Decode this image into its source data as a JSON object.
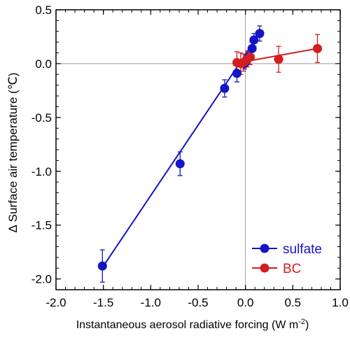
{
  "chart_data": {
    "type": "scatter",
    "title": "",
    "xlabel_main": "Instantaneous aerosol radiative forcing (W m",
    "xlabel_sup": "-2",
    "xlabel_close": ")",
    "ylabel": "Δ Surface air temperature (℃)",
    "xlim": [
      -2.0,
      1.0
    ],
    "ylim": [
      -2.1,
      0.5
    ],
    "x_ticks": [
      -2.0,
      -1.5,
      -1.0,
      -0.5,
      0.0,
      0.5,
      1.0
    ],
    "x_tick_labels": [
      "-2.0",
      "-1.5",
      "-1.0",
      "-0.5",
      "0.0",
      "0.5",
      "1.0"
    ],
    "y_ticks": [
      -2.0,
      -1.5,
      -1.0,
      -0.5,
      0.0,
      0.5
    ],
    "y_tick_labels": [
      "-2.0",
      "-1.5",
      "-1.0",
      "-0.5",
      "0.0",
      "0.5"
    ],
    "zero_lines": true,
    "grid": false,
    "legend_position": "bottom-right",
    "series": [
      {
        "name": "sulfate",
        "color": "#1414c8",
        "fit_line": {
          "x": [
            -1.5,
            0.15
          ],
          "y": [
            -1.88,
            0.28
          ]
        },
        "points": [
          {
            "x": -1.51,
            "y": -1.88,
            "yerr": 0.15,
            "xerr": 0.04
          },
          {
            "x": -0.69,
            "y": -0.93,
            "yerr": 0.11,
            "xerr": 0.02
          },
          {
            "x": -0.22,
            "y": -0.23,
            "yerr": 0.08,
            "xerr": 0.03
          },
          {
            "x": -0.09,
            "y": -0.09,
            "yerr": 0.08,
            "xerr": 0.02
          },
          {
            "x": -0.01,
            "y": 0.0,
            "yerr": 0.05,
            "xerr": 0.02
          },
          {
            "x": 0.03,
            "y": 0.06,
            "yerr": 0.06,
            "xerr": 0.02
          },
          {
            "x": 0.07,
            "y": 0.14,
            "yerr": 0.06,
            "xerr": 0.02
          },
          {
            "x": 0.09,
            "y": 0.22,
            "yerr": 0.06,
            "xerr": 0.02
          },
          {
            "x": 0.15,
            "y": 0.28,
            "yerr": 0.07,
            "xerr": 0.03
          }
        ]
      },
      {
        "name": "BC",
        "color": "#d21e1e",
        "fit_line": {
          "x": [
            -0.1,
            0.0,
            0.76
          ],
          "y": [
            0.0,
            0.02,
            0.14
          ]
        },
        "points": [
          {
            "x": -0.09,
            "y": 0.01,
            "yerr": 0.1,
            "xerr": 0.02
          },
          {
            "x": -0.05,
            "y": 0.0,
            "yerr": 0.1,
            "xerr": 0.02
          },
          {
            "x": -0.02,
            "y": 0.01,
            "yerr": 0.08,
            "xerr": 0.02
          },
          {
            "x": 0.02,
            "y": 0.04,
            "yerr": 0.07,
            "xerr": 0.02
          },
          {
            "x": 0.05,
            "y": 0.06,
            "yerr": 0.07,
            "xerr": 0.02
          },
          {
            "x": 0.35,
            "y": 0.04,
            "yerr": 0.12,
            "xerr": 0.05
          },
          {
            "x": 0.76,
            "y": 0.14,
            "yerr": 0.13,
            "xerr": 0.02
          }
        ]
      }
    ]
  }
}
